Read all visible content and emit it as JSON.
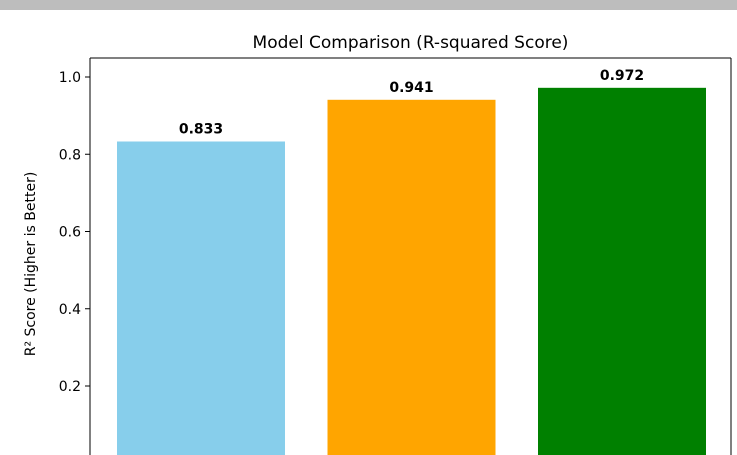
{
  "chart_data": {
    "type": "bar",
    "title": "Model Comparison (R-squared Score)",
    "ylabel": "R² Score (Higher is Better)",
    "xlabel": "",
    "categories": [
      "",
      "",
      ""
    ],
    "values": [
      0.833,
      0.941,
      0.972
    ],
    "data_labels": [
      "0.833",
      "0.941",
      "0.972"
    ],
    "colors": [
      "#87CEEB",
      "#FFA500",
      "#008000"
    ],
    "ylim": [
      0,
      1.05
    ],
    "yticks": [
      0.2,
      0.4,
      0.6,
      0.8,
      1.0
    ],
    "ytick_labels": [
      "0.2",
      "0.4",
      "0.6",
      "0.8",
      "1.0"
    ],
    "grid": false
  }
}
